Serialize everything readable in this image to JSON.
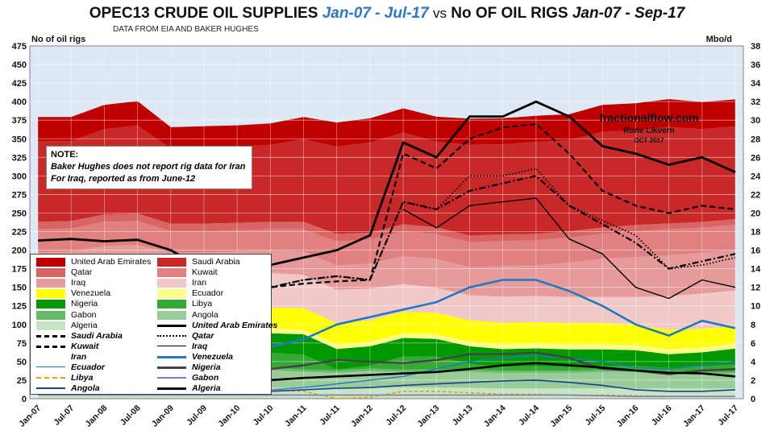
{
  "header": {
    "title_part1": "OPEC13 CRUDE OIL SUPPLIES",
    "title_part2": "Jan-07 - Jul-17",
    "title_vs": "vs",
    "title_part3": "No OF OIL RIGS",
    "title_part4": "Jan-07 - Sep-17",
    "subtitle": "DATA FROM EIA AND BAKER HUGHES",
    "left_axis_label": "No of  oil rigs",
    "right_axis_label": "Mbo/d"
  },
  "note": {
    "heading": "NOTE:",
    "line1": "Baker Hughes does not report rig data for Iran",
    "line2": "For Iraq, reported as from June-12"
  },
  "watermark": {
    "site": "fractionalflow.com",
    "author": "Rune Likvern",
    "date": "OCT 2017"
  },
  "colors": {
    "uae": "#c00000",
    "saudi": "#c82828",
    "qatar": "#d86464",
    "kuwait": "#e08080",
    "iraq": "#e69a9a",
    "iran": "#f0c8c8",
    "venezuela": "#ffff00",
    "ecuador": "#ffff88",
    "nigeria": "#009900",
    "libya": "#33aa33",
    "gabon": "#66bb66",
    "angola": "#99cc99",
    "algeria": "#c5e6c5",
    "plot_bg": "#dde8f4",
    "grid": "#ffffff",
    "rig_black": "#000000",
    "rig_blue": "#1f7ac4",
    "rig_orange": "#e8a000",
    "rig_purple": "#8877bb",
    "rig_navy": "#1f3f88",
    "rig_dark": "#444444"
  },
  "legend": {
    "areas": [
      {
        "label": "United Arab Emirates",
        "color": "#c00000"
      },
      {
        "label": "Saudi Arabia",
        "color": "#c82828"
      },
      {
        "label": "Qatar",
        "color": "#d86464"
      },
      {
        "label": "Kuwait",
        "color": "#e08080"
      },
      {
        "label": "Iraq",
        "color": "#e69a9a"
      },
      {
        "label": "Iran",
        "color": "#f0c8c8"
      },
      {
        "label": "Venezuela",
        "color": "#ffff00"
      },
      {
        "label": "Ecuador",
        "color": "#ffff88"
      },
      {
        "label": "Nigeria",
        "color": "#009900"
      },
      {
        "label": "Libya",
        "color": "#33aa33"
      },
      {
        "label": "Gabon",
        "color": "#66bb66"
      },
      {
        "label": "Angola",
        "color": "#99cc99"
      },
      {
        "label": "Algeria",
        "color": "#c5e6c5"
      }
    ],
    "lines": [
      {
        "label": "United Arab Emirates",
        "style": "solid-thick"
      },
      {
        "label": "Saudi Arabia",
        "style": "dash"
      },
      {
        "label": "Qatar",
        "style": "dot"
      },
      {
        "label": "Kuwait",
        "style": "dashdot"
      },
      {
        "label": "Iraq",
        "style": "solid-thin"
      },
      {
        "label": "Iran",
        "style": "none"
      },
      {
        "label": "Venezuela",
        "style": "blue-thick"
      },
      {
        "label": "Ecuador",
        "style": "blue-thin"
      },
      {
        "label": "Nigeria",
        "style": "dark"
      },
      {
        "label": "Libya",
        "style": "orange-dash"
      },
      {
        "label": "Gabon",
        "style": "purple"
      },
      {
        "label": "Angola",
        "style": "navy"
      },
      {
        "label": "Algeria",
        "style": "black-thick"
      }
    ]
  },
  "chart_data": {
    "type": "area",
    "title": "OPEC13 CRUDE OIL SUPPLIES Jan-07 - Jul-17 vs No OF OIL RIGS Jan-07 - Sep-17",
    "subtitle": "DATA FROM EIA AND BAKER HUGHES",
    "ylabel_left": "No of  oil rigs",
    "ylabel_right": "Mbo/d",
    "ylim_left": [
      0,
      475
    ],
    "ylim_right": [
      0,
      38
    ],
    "yticks_left": [
      "0",
      "25",
      "50",
      "75",
      "100",
      "125",
      "150",
      "175",
      "200",
      "225",
      "250",
      "275",
      "300",
      "325",
      "350",
      "375",
      "400",
      "425",
      "450",
      "475"
    ],
    "yticks_right": [
      "0",
      "2",
      "4",
      "6",
      "8",
      "10",
      "12",
      "14",
      "16",
      "18",
      "20",
      "22",
      "24",
      "26",
      "28",
      "30",
      "32",
      "34",
      "36",
      "38"
    ],
    "x_ticks": [
      "Jan-07",
      "Jul-07",
      "Jan-08",
      "Jul-08",
      "Jan-09",
      "Jul-09",
      "Jan-10",
      "Jul-10",
      "Jan-11",
      "Jul-11",
      "Jan-12",
      "Jul-12",
      "Jan-13",
      "Jul-13",
      "Jan-14",
      "Jul-14",
      "Jan-15",
      "Jul-15",
      "Jan-16",
      "Jul-16",
      "Jan-17",
      "Jul-17"
    ],
    "grid": true,
    "legend_position": "bottom-left",
    "supply_axis": "right",
    "supply_stack_order": [
      "Algeria",
      "Angola",
      "Gabon",
      "Libya",
      "Nigeria",
      "Ecuador",
      "Venezuela",
      "Iran",
      "Iraq",
      "Kuwait",
      "Qatar",
      "Saudi Arabia",
      "United Arab Emirates"
    ],
    "supply_series_mbod": [
      {
        "name": "Algeria",
        "values": [
          1.3,
          1.3,
          1.3,
          1.3,
          1.2,
          1.2,
          1.2,
          1.2,
          1.2,
          1.2,
          1.2,
          1.2,
          1.2,
          1.2,
          1.1,
          1.1,
          1.1,
          1.1,
          1.1,
          1.1,
          1.1,
          1.1
        ]
      },
      {
        "name": "Angola",
        "values": [
          1.5,
          1.7,
          1.9,
          1.9,
          1.8,
          1.8,
          1.9,
          1.9,
          1.7,
          1.6,
          1.8,
          1.7,
          1.7,
          1.7,
          1.7,
          1.7,
          1.7,
          1.8,
          1.8,
          1.7,
          1.6,
          1.6
        ]
      },
      {
        "name": "Gabon",
        "values": [
          0.25,
          0.25,
          0.25,
          0.25,
          0.25,
          0.25,
          0.25,
          0.25,
          0.25,
          0.25,
          0.25,
          0.25,
          0.25,
          0.25,
          0.24,
          0.22,
          0.22,
          0.22,
          0.22,
          0.2,
          0.2,
          0.2
        ]
      },
      {
        "name": "Libya",
        "values": [
          1.7,
          1.7,
          1.8,
          1.8,
          1.7,
          1.6,
          1.6,
          1.6,
          1.6,
          0.1,
          0.3,
          1.4,
          1.4,
          0.6,
          0.4,
          0.5,
          0.4,
          0.4,
          0.4,
          0.3,
          0.6,
          0.8
        ]
      },
      {
        "name": "Nigeria",
        "values": [
          2.1,
          2.1,
          2.0,
          2.0,
          1.9,
          1.9,
          2.0,
          2.1,
          2.2,
          2.2,
          2.1,
          2.0,
          1.9,
          1.9,
          1.9,
          1.9,
          1.9,
          1.8,
          1.7,
          1.5,
          1.5,
          1.7
        ]
      },
      {
        "name": "Ecuador",
        "values": [
          0.5,
          0.5,
          0.5,
          0.5,
          0.5,
          0.5,
          0.5,
          0.5,
          0.5,
          0.5,
          0.5,
          0.5,
          0.5,
          0.5,
          0.55,
          0.55,
          0.55,
          0.55,
          0.55,
          0.55,
          0.54,
          0.53
        ]
      },
      {
        "name": "Venezuela",
        "values": [
          2.4,
          2.4,
          2.4,
          2.4,
          2.3,
          2.3,
          2.3,
          2.3,
          2.3,
          2.3,
          2.3,
          2.3,
          2.3,
          2.3,
          2.3,
          2.3,
          2.3,
          2.3,
          2.2,
          2.1,
          2.0,
          1.9
        ]
      },
      {
        "name": "Iran",
        "values": [
          3.9,
          3.9,
          4.0,
          4.0,
          3.8,
          3.8,
          3.7,
          3.7,
          3.6,
          3.6,
          3.4,
          3.0,
          2.7,
          2.7,
          2.8,
          2.8,
          2.8,
          2.8,
          3.0,
          3.6,
          3.8,
          3.8
        ]
      },
      {
        "name": "Iraq",
        "values": [
          2.1,
          2.0,
          2.3,
          2.4,
          2.3,
          2.4,
          2.4,
          2.4,
          2.5,
          2.6,
          2.7,
          3.0,
          3.1,
          3.0,
          3.3,
          3.3,
          3.7,
          4.1,
          4.3,
          4.4,
          4.4,
          4.4
        ]
      },
      {
        "name": "Kuwait",
        "values": [
          2.5,
          2.5,
          2.6,
          2.6,
          2.3,
          2.3,
          2.3,
          2.3,
          2.4,
          2.6,
          2.6,
          2.7,
          2.7,
          2.7,
          2.7,
          2.7,
          2.7,
          2.7,
          2.8,
          2.8,
          2.7,
          2.7
        ]
      },
      {
        "name": "Qatar",
        "values": [
          0.8,
          0.8,
          0.8,
          0.8,
          0.8,
          0.8,
          0.8,
          0.8,
          0.8,
          0.8,
          0.75,
          0.73,
          0.72,
          0.72,
          0.72,
          0.7,
          0.68,
          0.67,
          0.65,
          0.62,
          0.61,
          0.61
        ]
      },
      {
        "name": "Saudi Arabia",
        "values": [
          8.7,
          8.6,
          9.2,
          9.5,
          8.1,
          8.2,
          8.2,
          8.3,
          8.9,
          9.4,
          9.7,
          9.9,
          9.2,
          9.8,
          9.7,
          9.9,
          9.8,
          10.3,
          10.2,
          10.4,
          10.0,
          10.0
        ]
      },
      {
        "name": "United Arab Emirates",
        "values": [
          2.6,
          2.6,
          2.6,
          2.6,
          2.3,
          2.3,
          2.3,
          2.3,
          2.4,
          2.6,
          2.6,
          2.6,
          2.7,
          2.8,
          2.8,
          2.8,
          2.8,
          2.9,
          2.9,
          3.0,
          2.9,
          2.9
        ]
      }
    ],
    "rig_axis": "left",
    "rig_series": [
      {
        "name": "United Arab Emirates",
        "style": "black-thick-total",
        "values": [
          213,
          215,
          212,
          214,
          200,
          175,
          160,
          180,
          190,
          200,
          220,
          345,
          325,
          380,
          380,
          400,
          380,
          340,
          330,
          315,
          325,
          305
        ]
      },
      {
        "name": "Saudi Arabia",
        "style": "dash",
        "values": [
          160,
          165,
          155,
          165,
          150,
          140,
          138,
          150,
          155,
          158,
          160,
          330,
          310,
          350,
          365,
          370,
          330,
          280,
          260,
          250,
          260,
          255
        ]
      },
      {
        "name": "Qatar",
        "style": "dot",
        "values": [
          150,
          152,
          148,
          150,
          140,
          136,
          135,
          150,
          160,
          165,
          160,
          265,
          255,
          300,
          300,
          310,
          260,
          240,
          220,
          175,
          180,
          190
        ]
      },
      {
        "name": "Kuwait",
        "style": "dashdot",
        "values": [
          150,
          152,
          148,
          150,
          140,
          136,
          135,
          150,
          160,
          165,
          160,
          265,
          255,
          280,
          290,
          300,
          260,
          235,
          210,
          175,
          185,
          195
        ]
      },
      {
        "name": "Iraq",
        "style": "solid-thin",
        "values": [
          0,
          0,
          0,
          0,
          0,
          0,
          0,
          0,
          0,
          0,
          0,
          255,
          230,
          260,
          265,
          270,
          215,
          195,
          150,
          135,
          160,
          150
        ]
      },
      {
        "name": "Venezuela",
        "style": "blue-thick",
        "values": [
          75,
          78,
          80,
          78,
          70,
          68,
          66,
          70,
          80,
          100,
          110,
          120,
          130,
          150,
          160,
          160,
          145,
          125,
          100,
          85,
          105,
          95
        ]
      },
      {
        "name": "Ecuador",
        "style": "blue-thin",
        "values": [
          12,
          12,
          12,
          12,
          10,
          10,
          10,
          12,
          15,
          20,
          25,
          30,
          40,
          50,
          55,
          58,
          55,
          50,
          42,
          40,
          45,
          50
        ]
      },
      {
        "name": "Nigeria",
        "style": "dark",
        "values": [
          50,
          52,
          48,
          48,
          45,
          40,
          40,
          40,
          45,
          52,
          50,
          48,
          52,
          60,
          60,
          62,
          55,
          40,
          38,
          33,
          38,
          40
        ]
      },
      {
        "name": "Libya",
        "style": "orange-dash",
        "values": [
          15,
          16,
          16,
          16,
          14,
          12,
          12,
          12,
          10,
          0,
          2,
          10,
          10,
          8,
          6,
          6,
          5,
          5,
          4,
          3,
          3,
          3
        ]
      },
      {
        "name": "Gabon",
        "style": "purple",
        "values": [
          5,
          5,
          5,
          5,
          5,
          5,
          5,
          5,
          5,
          5,
          5,
          5,
          5,
          5,
          5,
          5,
          5,
          4,
          3,
          3,
          3,
          3
        ]
      },
      {
        "name": "Angola",
        "style": "navy",
        "values": [
          9,
          10,
          10,
          12,
          12,
          10,
          10,
          10,
          12,
          14,
          15,
          18,
          20,
          22,
          24,
          25,
          22,
          18,
          12,
          10,
          10,
          12
        ]
      },
      {
        "name": "Algeria",
        "style": "black-thick",
        "values": [
          25,
          26,
          26,
          26,
          26,
          25,
          25,
          25,
          28,
          30,
          32,
          34,
          36,
          40,
          45,
          48,
          45,
          42,
          38,
          35,
          34,
          30
        ]
      }
    ]
  }
}
